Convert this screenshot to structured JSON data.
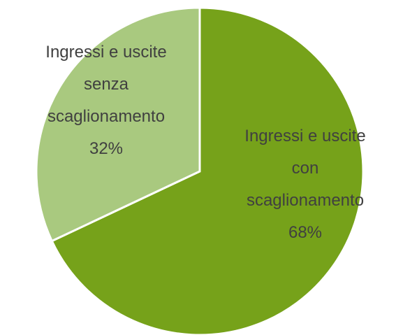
{
  "chart_data": {
    "type": "pie",
    "categories": [
      "Ingressi e uscite con scaglionamento",
      "Ingressi e uscite senza scaglionamento"
    ],
    "values": [
      68,
      32
    ],
    "value_labels": [
      "68%",
      "32%"
    ],
    "colors": [
      "#76a21a",
      "#a9c97f"
    ]
  }
}
